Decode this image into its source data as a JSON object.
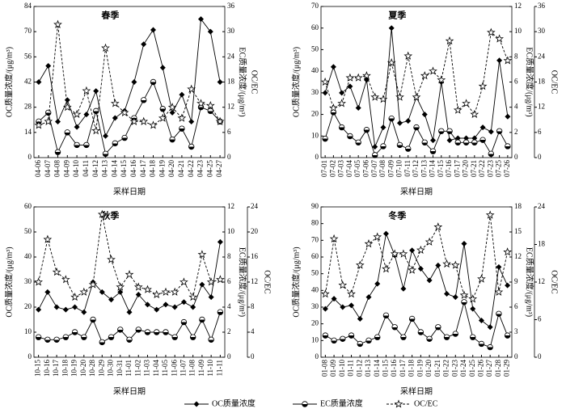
{
  "chart_data": [
    {
      "type": "line",
      "title": "春季",
      "xlabel": "采样日期",
      "ylabel": "OC质量浓度/(μg/m³)",
      "y2label": "EC质量浓度/(μg/m³)",
      "y3label": "OC/EC",
      "categories": [
        "04-06",
        "04-07",
        "04-08",
        "04-09",
        "04-10",
        "04-11",
        "04-12",
        "04-13",
        "04-14",
        "04-15",
        "04-16",
        "04-17",
        "04-18",
        "04-19",
        "04-20",
        "04-21",
        "04-22",
        "04-23",
        "04-25",
        "04-27"
      ],
      "ylim": [
        0,
        84
      ],
      "yticks": [
        0,
        14,
        28,
        42,
        56,
        70,
        84
      ],
      "y2lim": [
        0,
        36
      ],
      "y2ticks": [
        0,
        6,
        12,
        18,
        24,
        30,
        36
      ],
      "series": [
        {
          "name": "OC质量浓度",
          "color": "#000",
          "marker": "diamond",
          "line_style": "solid",
          "values": [
            42,
            51,
            20,
            32,
            17,
            24,
            37,
            12,
            22,
            26,
            42,
            63,
            71,
            50,
            25,
            35,
            20,
            77,
            70,
            42
          ]
        },
        {
          "name": "EC质量浓度",
          "color": "#000",
          "marker": "circle",
          "line_style": "solid",
          "axis": "y2",
          "values": [
            8.6,
            10.7,
            1.3,
            6,
            3,
            3,
            11.1,
            0.9,
            3.4,
            4.7,
            9.4,
            13.7,
            18,
            11.6,
            4.3,
            6.9,
            2.6,
            12,
            11.1,
            8.6
          ]
        },
        {
          "name": "OC/EC",
          "color": "#000",
          "marker": "star",
          "line_style": "dashed",
          "axis": "y2",
          "values": [
            7.7,
            8.6,
            31.7,
            12,
            10.3,
            15.9,
            6.4,
            26.1,
            12.9,
            10.7,
            8.6,
            8.6,
            7.7,
            9.4,
            12,
            9.4,
            16.3,
            12.9,
            12.4,
            8.6
          ]
        }
      ]
    },
    {
      "type": "line",
      "title": "夏季",
      "xlabel": "采样日期",
      "ylabel": "OC质量浓度/(μg/m³)",
      "y2label": "EC质量浓度/(μg/m³)",
      "y3label": "OC/EC",
      "categories": [
        "07-01",
        "07-02",
        "07-03",
        "07-04",
        "07-05",
        "07-06",
        "07-07",
        "07-08",
        "07-09",
        "07-10",
        "07-11",
        "07-12",
        "07-13",
        "07-14",
        "07-15",
        "07-16",
        "07-17",
        "07-20",
        "07-21",
        "07-22",
        "07-23",
        "07-25",
        "07-26"
      ],
      "ylim": [
        0,
        70
      ],
      "yticks": [
        0,
        10,
        20,
        30,
        40,
        50,
        60,
        70
      ],
      "y2lim": [
        0,
        12
      ],
      "y2ticks": [
        0,
        2,
        4,
        6,
        8,
        10,
        12
      ],
      "y3lim": [
        0,
        36
      ],
      "y3ticks": [
        0,
        6,
        12,
        18,
        24,
        30,
        36
      ],
      "series": [
        {
          "color": "#000",
          "marker": "diamond",
          "line_style": "solid",
          "values": [
            30,
            42,
            30,
            33,
            23,
            36,
            5,
            14,
            60,
            16,
            17,
            28,
            20,
            8,
            35,
            8,
            9,
            9,
            9,
            14,
            12,
            45,
            19
          ]
        },
        {
          "color": "#000",
          "marker": "circle",
          "line_style": "solid",
          "axis": "y2",
          "values": [
            1.5,
            3.6,
            2.4,
            1.7,
            1.2,
            2.2,
            0.2,
            0.9,
            3.1,
            1,
            0.7,
            2.4,
            1.2,
            0.5,
            2.1,
            2.1,
            1.2,
            1.2,
            1.2,
            1.4,
            0.3,
            2.1,
            0.9
          ]
        },
        {
          "color": "#000",
          "marker": "star",
          "line_style": "dashed",
          "axis": "y3",
          "values": [
            18,
            11.8,
            12.9,
            19,
            19,
            19.5,
            14.4,
            13.9,
            22.6,
            14.4,
            24.2,
            14.4,
            19.5,
            20.6,
            18.5,
            27.8,
            11.3,
            12.9,
            10.3,
            17,
            29.8,
            28.3,
            23.1
          ]
        }
      ]
    },
    {
      "type": "line",
      "title": "秋季",
      "xlabel": "采样日期",
      "ylabel": "OC质量浓度/(μg/m³)",
      "y2label": "EC质量浓度/(μg/m³)",
      "y3label": "OC/EC",
      "categories": [
        "10-15",
        "10-16",
        "10-17",
        "10-18",
        "10-19",
        "10-20",
        "10-28",
        "10-29",
        "10-30",
        "10-31",
        "11-01",
        "11-02",
        "11-03",
        "11-04",
        "11-05",
        "11-06",
        "11-07",
        "11-08",
        "11-09",
        "11-10",
        "11-11"
      ],
      "ylim": [
        0,
        60
      ],
      "yticks": [
        0,
        10,
        20,
        30,
        40,
        50,
        60
      ],
      "y2lim": [
        0,
        12
      ],
      "y2ticks": [
        0,
        2,
        4,
        6,
        8,
        10,
        12
      ],
      "y3lim": [
        0,
        24
      ],
      "y3ticks": [
        0,
        4,
        8,
        12,
        16,
        20,
        24
      ],
      "series": [
        {
          "color": "#000",
          "marker": "diamond",
          "line_style": "solid",
          "values": [
            19,
            26,
            20,
            19,
            20,
            18,
            30,
            26,
            23,
            26,
            18,
            25,
            21,
            19,
            21,
            20,
            22,
            20,
            29,
            24,
            46
          ]
        },
        {
          "color": "#000",
          "marker": "circle",
          "line_style": "solid",
          "axis": "y2",
          "values": [
            1.6,
            1.4,
            1.4,
            1.6,
            2,
            1.6,
            3,
            1.2,
            1.6,
            2.2,
            1.4,
            2.2,
            2,
            2,
            2,
            1.6,
            2.8,
            1.6,
            3,
            1.4,
            3.6
          ]
        },
        {
          "color": "#000",
          "marker": "star",
          "line_style": "dashed",
          "axis": "y3",
          "values": [
            12,
            18.8,
            13.6,
            12.4,
            9.6,
            10.4,
            11.6,
            22.8,
            15.6,
            11.2,
            13.2,
            11.2,
            10.8,
            10,
            10.4,
            10.4,
            12,
            9.6,
            16.4,
            12,
            12.4
          ]
        }
      ]
    },
    {
      "type": "line",
      "title": "冬季",
      "xlabel": "采样日期",
      "ylabel": "OC质量浓度/(μg/m³)",
      "y2label": "EC质量浓度/(μg/m³)",
      "y3label": "OC/EC",
      "categories": [
        "01-08",
        "01-09",
        "01-10",
        "01-11",
        "01-12",
        "01-13",
        "01-14",
        "01-15",
        "01-16",
        "01-17",
        "01-18",
        "01-19",
        "01-20",
        "01-21",
        "01-22",
        "01-23",
        "01-24",
        "01-25",
        "01-26",
        "01-27",
        "01-28",
        "01-29"
      ],
      "ylim": [
        0,
        90
      ],
      "yticks": [
        0,
        10,
        20,
        30,
        40,
        50,
        60,
        70,
        80,
        90
      ],
      "y2lim": [
        0,
        18
      ],
      "y2ticks": [
        0,
        3,
        6,
        9,
        12,
        15,
        18
      ],
      "y3lim": [
        0,
        24
      ],
      "y3ticks": [
        0,
        6,
        12,
        18,
        24
      ],
      "series": [
        {
          "color": "#000",
          "marker": "diamond",
          "line_style": "solid",
          "values": [
            29,
            35,
            30,
            31,
            23,
            36,
            44,
            74,
            61,
            41,
            64,
            53,
            46,
            55,
            38,
            36,
            68,
            29,
            22,
            18,
            54,
            43
          ]
        },
        {
          "color": "#000",
          "marker": "circle",
          "line_style": "solid",
          "axis": "y2",
          "values": [
            2.6,
            2,
            2.2,
            2.6,
            1.6,
            2,
            2.4,
            5,
            3.6,
            2.4,
            4.6,
            3,
            2.2,
            3.6,
            2.4,
            2.8,
            6.6,
            2.4,
            1.6,
            1.2,
            5.2,
            2.6
          ]
        },
        {
          "color": "#000",
          "marker": "star",
          "line_style": "dashed",
          "axis": "y3",
          "values": [
            10.1,
            18.9,
            11.5,
            10.1,
            14.7,
            18.1,
            19.2,
            14.1,
            16.5,
            16.5,
            13.9,
            17.1,
            18.4,
            20.8,
            14.9,
            14.7,
            9.9,
            9.3,
            12.5,
            22.7,
            10.4,
            16.8
          ]
        }
      ]
    }
  ]
}
